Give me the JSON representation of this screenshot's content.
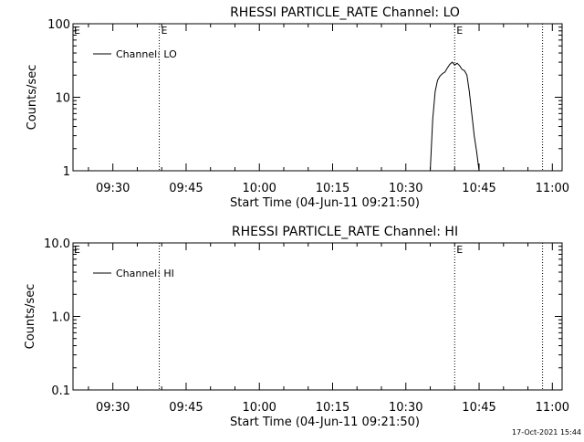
{
  "footer_timestamp": "17-Oct-2021 15:44",
  "chart_data": [
    {
      "type": "line",
      "title": "RHESSI PARTICLE_RATE Channel: LO",
      "xlabel": "Start Time (04-Jun-11 09:21:50)",
      "ylabel": "Counts/sec",
      "yscale": "log",
      "ylim": [
        1,
        100
      ],
      "yticks": [
        {
          "value": 1,
          "label": "1"
        },
        {
          "value": 10,
          "label": "10"
        },
        {
          "value": 100,
          "label": "100"
        }
      ],
      "xlim": [
        "09:21:50",
        "11:02:00"
      ],
      "xticks": [
        "09:30",
        "09:45",
        "10:00",
        "10:15",
        "10:30",
        "10:45",
        "11:00"
      ],
      "grid": false,
      "legend": {
        "position": "top-left",
        "label": "Channel: LO"
      },
      "markers": [
        {
          "time": "09:39:30",
          "label": "E"
        },
        {
          "time": "10:40:00",
          "label": "E"
        },
        {
          "time": "10:58:00",
          "label": ""
        }
      ],
      "series": [
        {
          "name": "Channel: LO",
          "x": [
            "10:35:00",
            "10:35:30",
            "10:36:00",
            "10:36:30",
            "10:37:00",
            "10:37:30",
            "10:38:00",
            "10:38:30",
            "10:39:00",
            "10:39:30",
            "10:40:00",
            "10:40:30",
            "10:41:00",
            "10:41:30",
            "10:42:00",
            "10:42:30",
            "10:43:00",
            "10:43:30",
            "10:44:00",
            "10:44:30",
            "10:45:00"
          ],
          "y": [
            1.0,
            5.0,
            12.0,
            17.0,
            19.5,
            21.0,
            22.0,
            25.0,
            28.0,
            30.0,
            27.5,
            29.0,
            27.0,
            24.0,
            23.0,
            20.0,
            12.0,
            6.0,
            3.0,
            1.8,
            1.0
          ]
        }
      ]
    },
    {
      "type": "line",
      "title": "RHESSI PARTICLE_RATE Channel: HI",
      "xlabel": "Start Time (04-Jun-11 09:21:50)",
      "ylabel": "Counts/sec",
      "yscale": "log",
      "ylim": [
        0.1,
        10
      ],
      "yticks": [
        {
          "value": 0.1,
          "label": "0.1"
        },
        {
          "value": 1,
          "label": "1.0"
        },
        {
          "value": 10,
          "label": "10.0"
        }
      ],
      "xlim": [
        "09:21:50",
        "11:02:00"
      ],
      "xticks": [
        "09:30",
        "09:45",
        "10:00",
        "10:15",
        "10:30",
        "10:45",
        "11:00"
      ],
      "grid": false,
      "legend": {
        "position": "top-left",
        "label": "Channel: HI"
      },
      "markers": [
        {
          "time": "09:39:30",
          "label": ""
        },
        {
          "time": "10:40:00",
          "label": "E"
        },
        {
          "time": "10:58:00",
          "label": ""
        }
      ],
      "series": [
        {
          "name": "Channel: HI",
          "x": [],
          "y": []
        }
      ]
    }
  ]
}
